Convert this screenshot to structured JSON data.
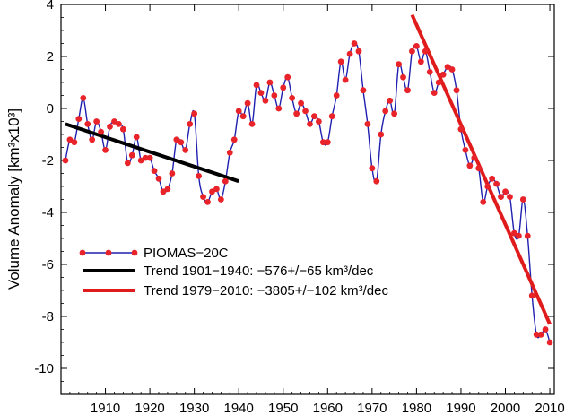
{
  "chart_data": {
    "type": "line",
    "xlabel": "",
    "ylabel": "Volume Anomaly [km³x10³]",
    "xlim": [
      1900,
      2011
    ],
    "ylim": [
      -11,
      4
    ],
    "xticks": [
      1910,
      1920,
      1930,
      1940,
      1950,
      1960,
      1970,
      1980,
      1990,
      2000,
      2010
    ],
    "yticks": [
      4,
      2,
      0,
      -2,
      -4,
      -6,
      -8,
      -10
    ],
    "grid": false,
    "legend_position": "lower-left",
    "colors": {
      "piomas_line": "#1f1fb0",
      "piomas_marker": "#e8232a",
      "trend_1901": "#000000",
      "trend_1979": "#e01b1b"
    },
    "series": [
      {
        "name": "PIOMAS−20C",
        "style": "line+markers",
        "x": [
          1901,
          1902,
          1903,
          1904,
          1905,
          1906,
          1907,
          1908,
          1909,
          1910,
          1911,
          1912,
          1913,
          1914,
          1915,
          1916,
          1917,
          1918,
          1919,
          1920,
          1921,
          1922,
          1923,
          1924,
          1925,
          1926,
          1927,
          1928,
          1929,
          1930,
          1931,
          1932,
          1933,
          1934,
          1935,
          1936,
          1937,
          1938,
          1939,
          1940,
          1941,
          1942,
          1943,
          1944,
          1945,
          1946,
          1947,
          1948,
          1949,
          1950,
          1951,
          1952,
          1953,
          1954,
          1955,
          1956,
          1957,
          1958,
          1959,
          1960,
          1961,
          1962,
          1963,
          1964,
          1965,
          1966,
          1967,
          1968,
          1969,
          1970,
          1971,
          1972,
          1973,
          1974,
          1975,
          1976,
          1977,
          1978,
          1979,
          1980,
          1981,
          1982,
          1983,
          1984,
          1985,
          1986,
          1987,
          1988,
          1989,
          1990,
          1991,
          1992,
          1993,
          1994,
          1995,
          1996,
          1997,
          1998,
          1999,
          2000,
          2001,
          2002,
          2003,
          2004,
          2005,
          2006,
          2007,
          2008,
          2009,
          2010
        ],
        "values": [
          -2.0,
          -1.2,
          -1.3,
          -0.4,
          0.4,
          -0.6,
          -1.2,
          -0.5,
          -0.9,
          -1.6,
          -0.7,
          -0.5,
          -0.6,
          -0.8,
          -2.1,
          -1.8,
          -1.1,
          -2.0,
          -1.9,
          -1.9,
          -2.4,
          -2.7,
          -3.2,
          -3.1,
          -2.5,
          -1.2,
          -1.3,
          -1.6,
          -0.6,
          -0.2,
          -2.6,
          -3.4,
          -3.6,
          -3.2,
          -3.1,
          -3.5,
          -2.8,
          -1.7,
          -1.2,
          -0.1,
          -0.3,
          0.2,
          -0.6,
          0.9,
          0.6,
          0.3,
          1.0,
          0.5,
          0.0,
          0.8,
          1.2,
          0.4,
          -0.2,
          0.2,
          -0.1,
          -0.6,
          -0.3,
          -0.5,
          -1.3,
          -1.3,
          -0.3,
          0.5,
          1.8,
          1.1,
          2.1,
          2.5,
          2.2,
          0.7,
          -0.6,
          -2.3,
          -2.8,
          -1.0,
          -0.1,
          0.3,
          -0.2,
          1.7,
          1.2,
          0.7,
          2.2,
          2.4,
          1.8,
          2.2,
          1.4,
          0.6,
          1.0,
          1.3,
          1.6,
          1.5,
          0.7,
          -0.8,
          -1.6,
          -2.2,
          -1.9,
          -2.3,
          -3.6,
          -3.0,
          -2.7,
          -2.9,
          -3.4,
          -3.2,
          -3.4,
          -4.8,
          -4.9,
          -3.5,
          -4.9,
          -7.2,
          -8.7,
          -8.7,
          -8.5,
          -9.0
        ]
      }
    ],
    "trends": [
      {
        "name": "Trend 1901−1940:  −576+/−65 km³/dec",
        "x": [
          1901,
          1940
        ],
        "y": [
          -0.6,
          -2.8
        ]
      },
      {
        "name": "Trend 1979−2010: −3805+/−102 km³/dec",
        "x": [
          1979,
          2010
        ],
        "y": [
          3.6,
          -8.3
        ]
      }
    ],
    "legend": [
      {
        "label": "PIOMAS−20C"
      },
      {
        "label": "Trend 1901−1940:  −576+/−65 km³/dec"
      },
      {
        "label": "Trend 1979−2010: −3805+/−102 km³/dec"
      }
    ]
  }
}
